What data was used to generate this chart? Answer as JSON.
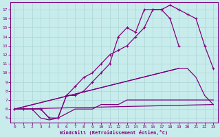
{
  "xlabel": "Windchill (Refroidissement éolien,°C)",
  "bg_color": "#c8ecec",
  "line_color": "#800080",
  "grid_color": "#b0d8d8",
  "line1_x": [
    0,
    1,
    2,
    3,
    4,
    5,
    6,
    7,
    8,
    9,
    10,
    11,
    12,
    13,
    14,
    15,
    16,
    17,
    18,
    19,
    20,
    21,
    22,
    23
  ],
  "line1_y": [
    6,
    6,
    6,
    6,
    5,
    5,
    7.5,
    8.5,
    9.5,
    10,
    11,
    12,
    12.5,
    13,
    14,
    15,
    17,
    17,
    17.5,
    17,
    16.5,
    16,
    13,
    10.5
  ],
  "line2_x": [
    0,
    1,
    2,
    3,
    4,
    5,
    6,
    7,
    8,
    9,
    10,
    11,
    12,
    13,
    14,
    15,
    16,
    17,
    18,
    19
  ],
  "line2_y": [
    6,
    6,
    6,
    6,
    5,
    5,
    7.5,
    7.5,
    8,
    9,
    10,
    11,
    14,
    15,
    14.5,
    17,
    17,
    17,
    16,
    13
  ],
  "line3_x": [
    0,
    19,
    20,
    21,
    22,
    23
  ],
  "line3_y": [
    6,
    10.5,
    10.5,
    9.5,
    7.5,
    6.5
  ],
  "line4_x": [
    0,
    1,
    2,
    3,
    4,
    5,
    6,
    7,
    8,
    9,
    10,
    11,
    12,
    13,
    14,
    15,
    16,
    17,
    18,
    19,
    20,
    21,
    22,
    23
  ],
  "line4_y": [
    6,
    6,
    6,
    5,
    4.8,
    5,
    5.5,
    6,
    6,
    6,
    6.5,
    6.5,
    6.5,
    7,
    7,
    7,
    7,
    7,
    7,
    7,
    7,
    7,
    7,
    7
  ],
  "ylim": [
    4.5,
    17.8
  ],
  "xlim": [
    -0.5,
    23.5
  ],
  "yticks": [
    5,
    6,
    7,
    8,
    9,
    10,
    11,
    12,
    13,
    14,
    15,
    16,
    17
  ],
  "xticks": [
    0,
    1,
    2,
    3,
    4,
    5,
    6,
    7,
    8,
    9,
    10,
    11,
    12,
    13,
    14,
    15,
    16,
    17,
    18,
    19,
    20,
    21,
    22,
    23
  ]
}
